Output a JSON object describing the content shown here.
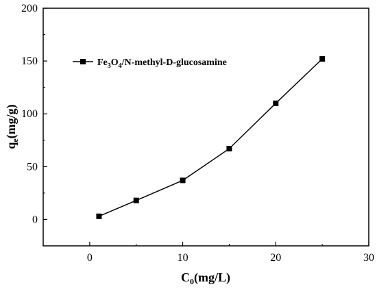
{
  "chart_data": {
    "type": "line",
    "x": [
      1,
      5,
      10,
      15,
      20,
      25
    ],
    "series": [
      {
        "name": "Fe3O4/N-methyl-D-glucosamine",
        "values": [
          3,
          18,
          37,
          67,
          110,
          152
        ]
      }
    ],
    "legend": {
      "placement": "top-left",
      "label_parts": {
        "a": "Fe",
        "sub1": "3",
        "b": "O",
        "sub2": "4",
        "c": "/N-methyl-D-glucosamine"
      }
    },
    "xlabel_parts": {
      "main": "C",
      "sub": "0",
      "rest": "(mg/L)"
    },
    "ylabel_parts": {
      "main": "q",
      "sub": "e",
      "rest": "(mg/g)"
    },
    "xlim": [
      -5,
      30
    ],
    "ylim": [
      -25,
      200
    ],
    "xticks": [
      "0",
      "10",
      "20",
      "30"
    ],
    "yticks": [
      "0",
      "50",
      "100",
      "150",
      "200"
    ],
    "marker": "square",
    "line_color": "#000000",
    "grid": false
  }
}
